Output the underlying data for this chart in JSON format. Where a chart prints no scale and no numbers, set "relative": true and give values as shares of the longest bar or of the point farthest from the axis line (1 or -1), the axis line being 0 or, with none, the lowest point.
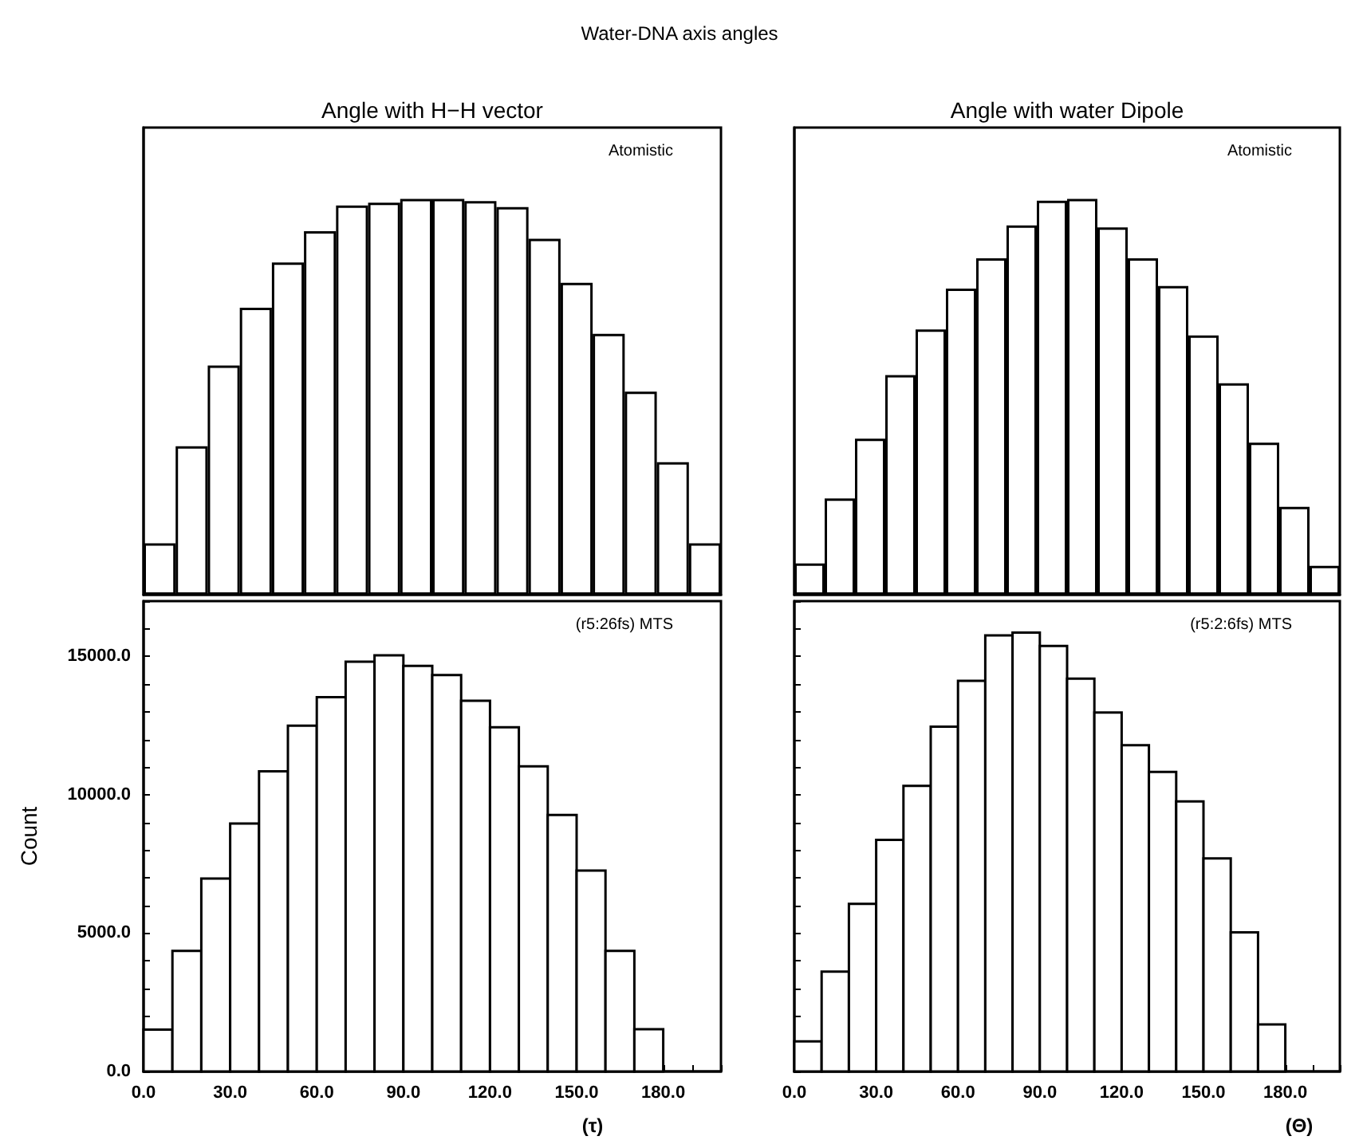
{
  "chart_data": [
    {
      "type": "bar",
      "title": "Water-DNA axis angles",
      "subtitle": "Angle with H−H vector",
      "annotations": [
        "Atomistic"
      ],
      "color": "#ffffff",
      "relative": true,
      "categories": [
        null,
        null,
        null,
        null,
        null,
        null,
        null,
        null,
        null,
        null,
        null,
        null,
        null,
        null,
        null,
        null,
        null,
        null
      ],
      "values": [
        0.13,
        0.375,
        0.579,
        0.725,
        0.839,
        0.918,
        0.983,
        0.99,
        1,
        1,
        0.994,
        0.979,
        0.899,
        0.788,
        0.659,
        0.513,
        0.335,
        0.13
      ],
      "tick_labels": false
    },
    {
      "type": "bar",
      "subtitle": "Angle with water Dipole",
      "annotations": [
        "Atomistic"
      ],
      "color": "#ffffff",
      "relative": true,
      "categories": [
        null,
        null,
        null,
        null,
        null,
        null,
        null,
        null,
        null,
        null,
        null,
        null,
        null,
        null,
        null,
        null,
        null,
        null
      ],
      "values": [
        0.079,
        0.243,
        0.394,
        0.555,
        0.67,
        0.773,
        0.85,
        0.933,
        0.995,
        1,
        0.928,
        0.85,
        0.78,
        0.655,
        0.534,
        0.384,
        0.222,
        0.073
      ],
      "tick_labels": false
    },
    {
      "type": "histogram",
      "xlabel": "(τ)",
      "ylabel": "Count",
      "annotations": [
        "(r5:26fs) MTS"
      ],
      "color": "#ffffff",
      "bins": [
        0,
        10,
        20,
        30,
        40,
        50,
        60,
        70,
        80,
        90,
        100,
        110,
        120,
        130,
        140,
        150,
        160,
        170,
        180
      ],
      "values": [
        1510,
        4360,
        6970,
        8960,
        10850,
        12500,
        13530,
        14810,
        15040,
        14660,
        14330,
        13400,
        12440,
        11030,
        9270,
        7260,
        4360,
        1530
      ],
      "xlim": [
        0,
        200
      ],
      "xticks": [
        {
          "value": 0,
          "label": "0.0"
        },
        {
          "value": 10,
          "label": null
        },
        {
          "value": 20,
          "label": null
        },
        {
          "value": 30,
          "label": "30.0"
        },
        {
          "value": 40,
          "label": null
        },
        {
          "value": 50,
          "label": null
        },
        {
          "value": 60,
          "label": "60.0"
        },
        {
          "value": 70,
          "label": null
        },
        {
          "value": 80,
          "label": null
        },
        {
          "value": 90,
          "label": "90.0"
        },
        {
          "value": 100,
          "label": null
        },
        {
          "value": 110,
          "label": null
        },
        {
          "value": 120,
          "label": "120.0"
        },
        {
          "value": 130,
          "label": null
        },
        {
          "value": 140,
          "label": null
        },
        {
          "value": 150,
          "label": "150.0"
        },
        {
          "value": 160,
          "label": null
        },
        {
          "value": 170,
          "label": null
        },
        {
          "value": 180,
          "label": "180.0"
        },
        {
          "value": 190,
          "label": null
        },
        {
          "value": 200,
          "label": null
        }
      ],
      "ylim": [
        0,
        17000
      ],
      "yticks": [
        {
          "value": 0,
          "label": "0.0"
        },
        {
          "value": 1000,
          "label": null
        },
        {
          "value": 2000,
          "label": null
        },
        {
          "value": 3000,
          "label": null
        },
        {
          "value": 4000,
          "label": null
        },
        {
          "value": 5000,
          "label": "5000.0"
        },
        {
          "value": 6000,
          "label": null
        },
        {
          "value": 7000,
          "label": null
        },
        {
          "value": 8000,
          "label": null
        },
        {
          "value": 9000,
          "label": null
        },
        {
          "value": 10000,
          "label": "10000.0"
        },
        {
          "value": 11000,
          "label": null
        },
        {
          "value": 12000,
          "label": null
        },
        {
          "value": 13000,
          "label": null
        },
        {
          "value": 14000,
          "label": null
        },
        {
          "value": 15000,
          "label": "15000.0"
        },
        {
          "value": 16000,
          "label": null
        },
        {
          "value": 17000,
          "label": null
        }
      ]
    },
    {
      "type": "histogram",
      "xlabel": "(Θ)",
      "annotations": [
        "(r5:2:6fs) MTS"
      ],
      "color": "#ffffff",
      "bins": [
        0,
        10,
        20,
        30,
        40,
        50,
        60,
        70,
        80,
        90,
        100,
        110,
        120,
        130,
        140,
        150,
        160,
        170,
        180
      ],
      "values": [
        1090,
        3610,
        6060,
        8370,
        10320,
        12460,
        14120,
        15760,
        15860,
        15380,
        14200,
        12970,
        11790,
        10830,
        9760,
        7700,
        5030,
        1700
      ],
      "xlim": [
        0,
        200
      ],
      "xticks": [
        {
          "value": 0,
          "label": "0.0"
        },
        {
          "value": 10,
          "label": null
        },
        {
          "value": 20,
          "label": null
        },
        {
          "value": 30,
          "label": "30.0"
        },
        {
          "value": 40,
          "label": null
        },
        {
          "value": 50,
          "label": null
        },
        {
          "value": 60,
          "label": "60.0"
        },
        {
          "value": 70,
          "label": null
        },
        {
          "value": 80,
          "label": null
        },
        {
          "value": 90,
          "label": "90.0"
        },
        {
          "value": 100,
          "label": null
        },
        {
          "value": 110,
          "label": null
        },
        {
          "value": 120,
          "label": "120.0"
        },
        {
          "value": 130,
          "label": null
        },
        {
          "value": 140,
          "label": null
        },
        {
          "value": 150,
          "label": "150.0"
        },
        {
          "value": 160,
          "label": null
        },
        {
          "value": 170,
          "label": null
        },
        {
          "value": 180,
          "label": "180.0"
        },
        {
          "value": 190,
          "label": null
        },
        {
          "value": 200,
          "label": null
        }
      ],
      "ylim": [
        0,
        17000
      ],
      "yticks": [
        {
          "value": 0,
          "label": null
        },
        {
          "value": 1000,
          "label": null
        },
        {
          "value": 2000,
          "label": null
        },
        {
          "value": 3000,
          "label": null
        },
        {
          "value": 4000,
          "label": null
        },
        {
          "value": 5000,
          "label": null
        },
        {
          "value": 6000,
          "label": null
        },
        {
          "value": 7000,
          "label": null
        },
        {
          "value": 8000,
          "label": null
        },
        {
          "value": 9000,
          "label": null
        },
        {
          "value": 10000,
          "label": null
        },
        {
          "value": 11000,
          "label": null
        },
        {
          "value": 12000,
          "label": null
        },
        {
          "value": 13000,
          "label": null
        },
        {
          "value": 14000,
          "label": null
        },
        {
          "value": 15000,
          "label": null
        },
        {
          "value": 16000,
          "label": null
        },
        {
          "value": 17000,
          "label": null
        }
      ],
      "tick_labels": "x"
    }
  ]
}
